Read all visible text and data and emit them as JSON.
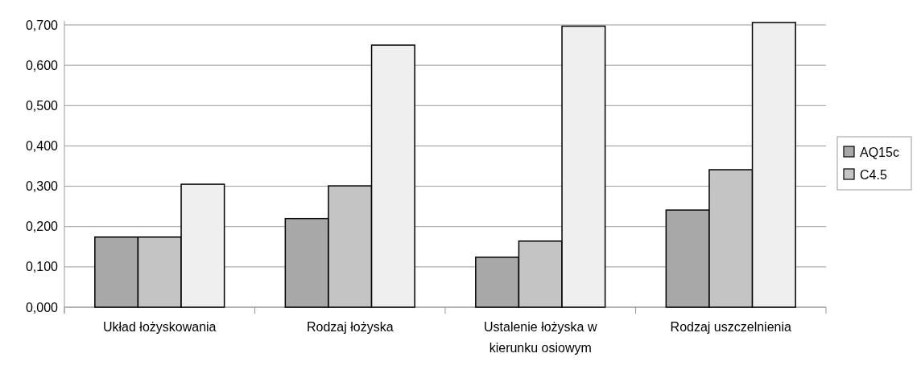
{
  "chart_data": {
    "type": "bar",
    "categories": [
      "Układ łożyskowania",
      "Rodzaj łożyska",
      "Ustalenie łożyska w kierunku osiowym",
      "Rodzaj uszczelnienia"
    ],
    "series": [
      {
        "name": "AQ15c",
        "color": "#a8a8a8",
        "values": [
          0.174,
          0.22,
          0.124,
          0.241
        ]
      },
      {
        "name": "C4.5",
        "color": "#c4c4c4",
        "values": [
          0.174,
          0.301,
          0.164,
          0.341
        ]
      },
      {
        "color": "#efefef",
        "values": [
          0.305,
          0.65,
          0.697,
          0.706
        ]
      }
    ],
    "ylim": [
      0,
      0.71
    ],
    "yticks": [
      {
        "value": 0,
        "label": "0,000"
      },
      {
        "value": 0.1,
        "label": "0,100"
      },
      {
        "value": 0.2,
        "label": "0,200"
      },
      {
        "value": 0.3,
        "label": "0,300"
      },
      {
        "value": 0.4,
        "label": "0,400"
      },
      {
        "value": 0.5,
        "label": "0,500"
      },
      {
        "value": 0.6,
        "label": "0,600"
      },
      {
        "value": 0.7,
        "label": "0,700"
      }
    ],
    "grid": "y",
    "legend": "right"
  }
}
